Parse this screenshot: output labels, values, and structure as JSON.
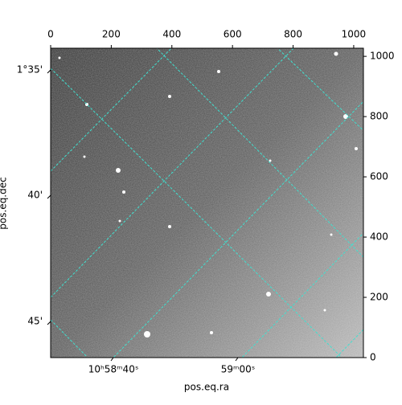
{
  "chart_data": {
    "type": "image",
    "xlabel": "pos.eq.ra",
    "ylabel": "pos.eq.dec",
    "xlim": [
      0,
      1032
    ],
    "ylim": [
      0,
      1027
    ],
    "xticks": [
      0,
      200,
      400,
      600,
      800,
      1000
    ],
    "yticks": [
      0,
      200,
      400,
      600,
      800,
      1000
    ],
    "ra_ticks": [
      "10ʰ58ᵐ40ˢ",
      "59ᵐ00ˢ"
    ],
    "dec_ticks": [
      "1°35'",
      "40'",
      "45'"
    ],
    "grid_color": "#40e0d0"
  }
}
